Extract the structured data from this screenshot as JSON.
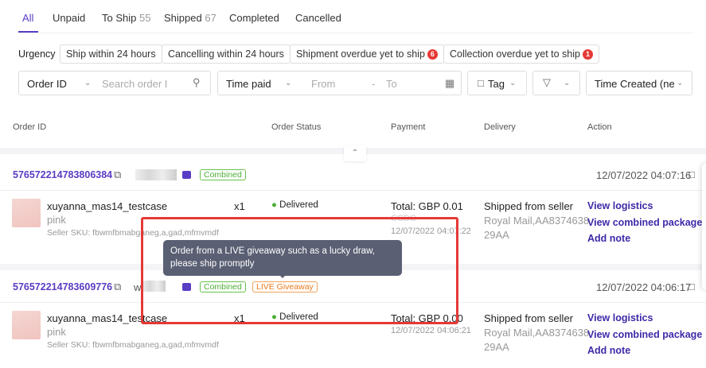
{
  "tabs": [
    {
      "label": "All"
    },
    {
      "label": "Unpaid"
    },
    {
      "label": "To Ship",
      "count": "55"
    },
    {
      "label": "Shipped",
      "count": "67"
    },
    {
      "label": "Completed"
    },
    {
      "label": "Cancelled"
    }
  ],
  "urgency": {
    "label": "Urgency",
    "chips": [
      {
        "label": "Ship within 24 hours"
      },
      {
        "label": "Cancelling within 24 hours"
      },
      {
        "label": "Shipment overdue yet to ship",
        "badge": "6"
      },
      {
        "label": "Collection overdue yet to ship",
        "badge": "1"
      }
    ]
  },
  "filters": {
    "search_type": "Order ID",
    "search_placeholder": "Search order I",
    "time_type": "Time paid",
    "from": "From",
    "sep": "-",
    "to": "To",
    "tag": "Tag",
    "sort": "Time Created (nev"
  },
  "columns": [
    "Order ID",
    "Order Status",
    "Payment",
    "Delivery",
    "Action"
  ],
  "orders": [
    {
      "id": "576572214783806384",
      "buyer": "",
      "tags": [
        "Combined"
      ],
      "time": "12/07/2022 04:07:16",
      "product": "xuyanna_mas14_testcase",
      "variant": "pink",
      "sku": "Seller SKU: fbwmfbmabganeg,a,gad,mfmvmdf",
      "qty": "x1",
      "status": "Delivered",
      "total": "Total: GBP 0.01",
      "pay_method": "CCDC",
      "pay_time": "12/07/2022 04:07:22",
      "delivery": "Shipped from seller",
      "carrier": "Royal Mail,AA8374638",
      "carrier2": "29AA",
      "actions": [
        "View logistics",
        "View combined package",
        "Add note"
      ]
    },
    {
      "id": "576572214783609776",
      "buyer": "wo",
      "tags": [
        "Combined",
        "LIVE Giveaway"
      ],
      "time": "12/07/2022 04:06:17",
      "product": "xuyanna_mas14_testcase",
      "variant": "pink",
      "sku": "Seller SKU: fbwmfbmabganeg,a,gad,mfmvmdf",
      "qty": "x1",
      "status": "Delivered",
      "total": "Total: GBP 0.00",
      "pay_time": "12/07/2022 04:06:21",
      "delivery": "Shipped from seller",
      "carrier": "Royal Mail,AA8374638",
      "carrier2": "29AA",
      "actions": [
        "View logistics",
        "View combined package",
        "Add note"
      ]
    }
  ],
  "tooltip": "Order from a LIVE giveaway such as a lucky draw, please ship promptly",
  "colors": {
    "accent": "#5b3cc4",
    "link": "#3d2aa8",
    "highlight": "#e53935",
    "combined": "#4caf35",
    "giveaway": "#ee7a1a"
  }
}
